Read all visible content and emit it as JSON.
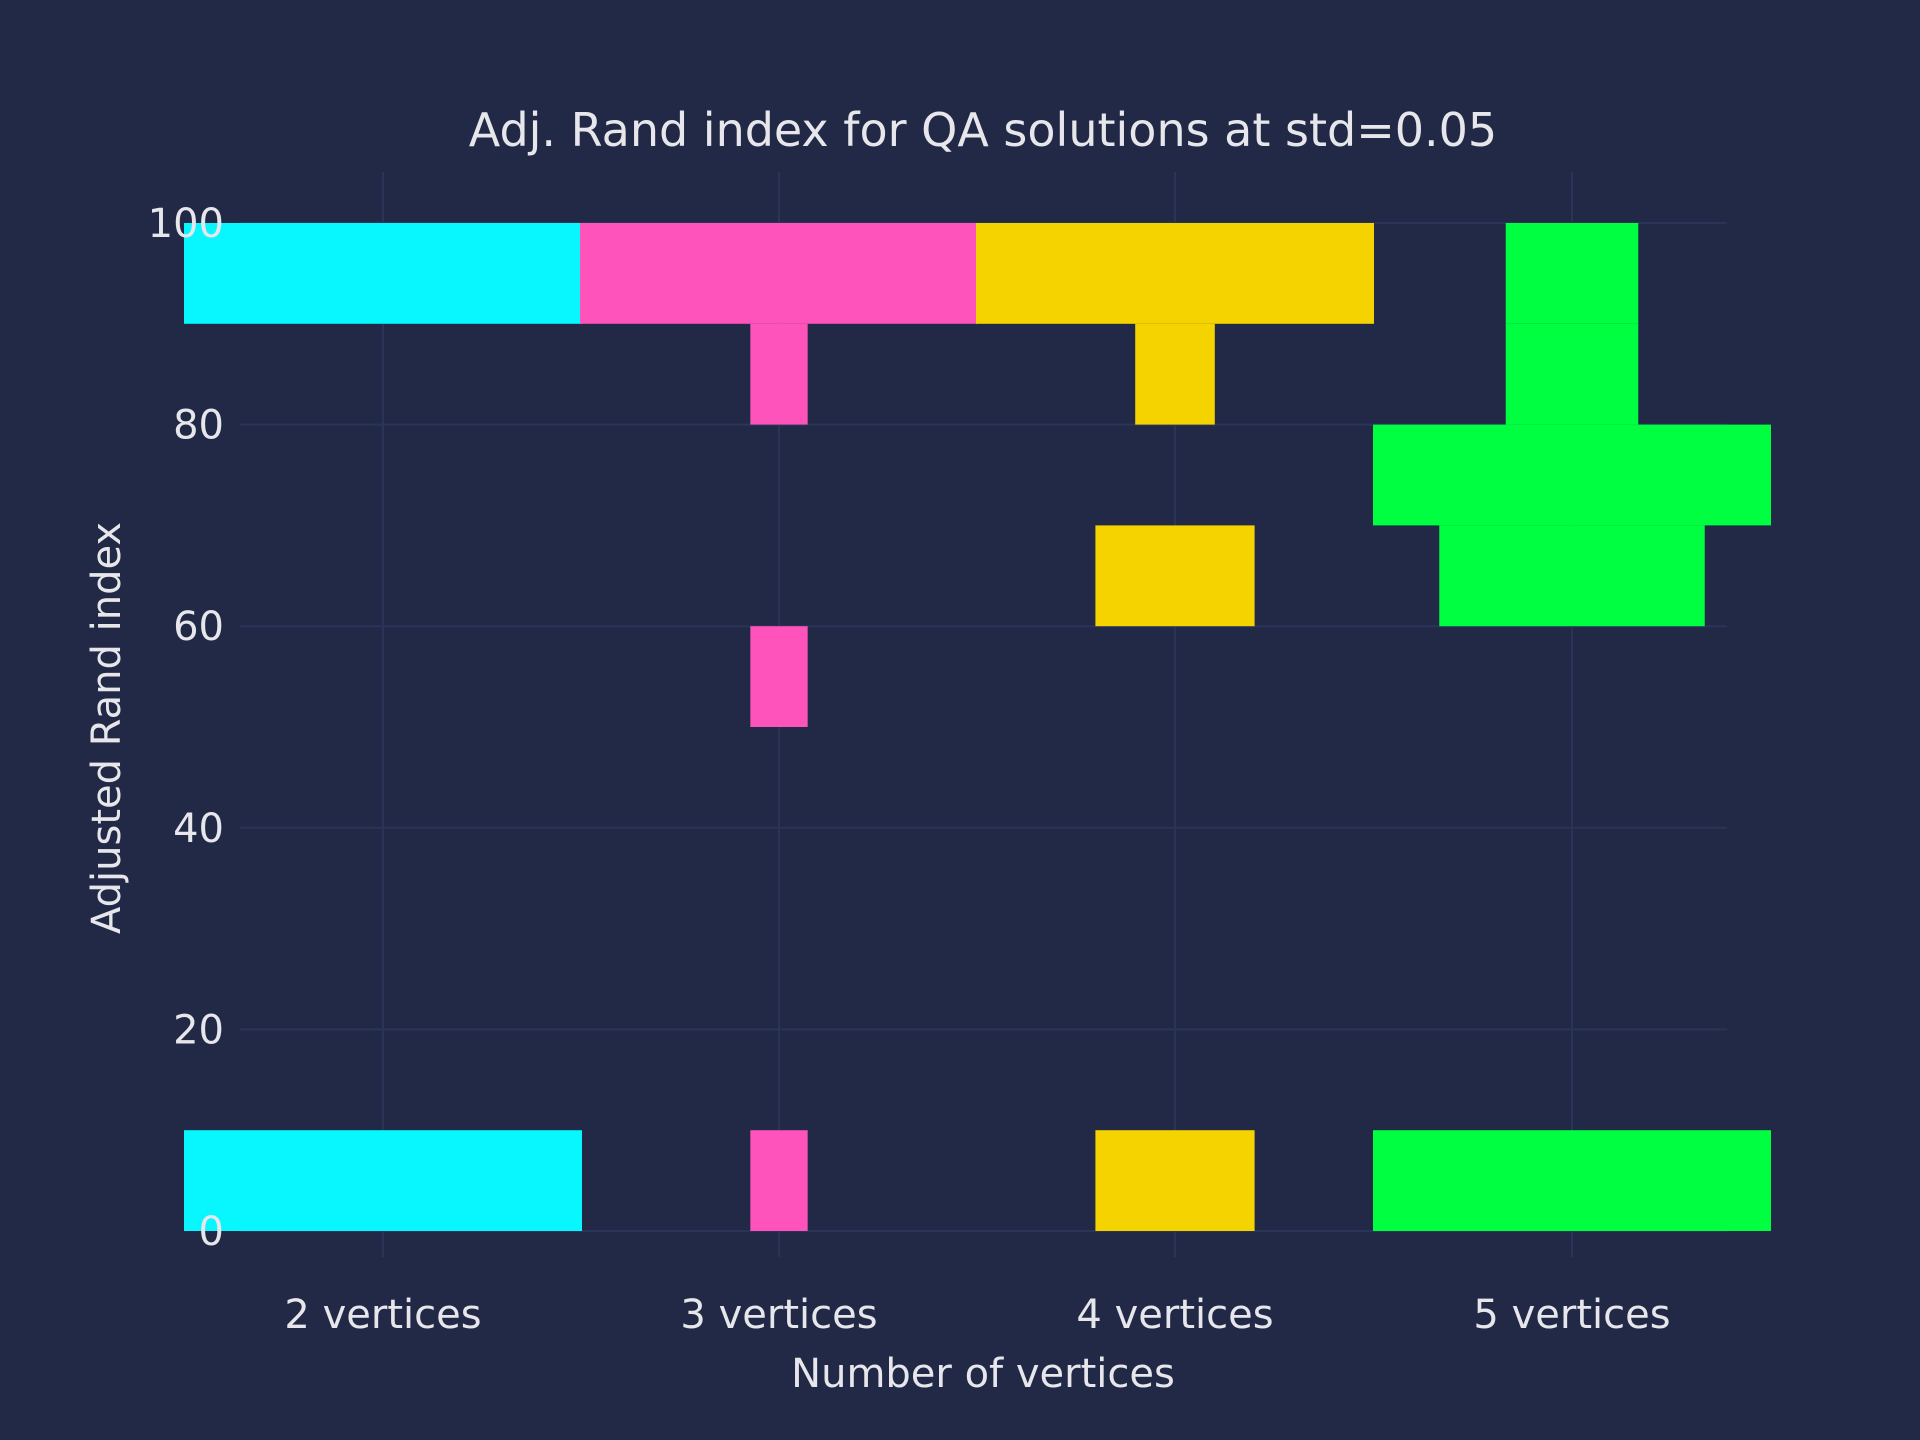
{
  "chart_data": {
    "type": "violin",
    "title": "Adj. Rand index for QA solutions at std=0.05",
    "xlabel": "Number of vertices",
    "ylabel": "Adjusted Rand index",
    "ylim": [
      0,
      100
    ],
    "yticks": [
      0,
      20,
      40,
      60,
      80,
      100
    ],
    "grid": true,
    "bin_width": 10,
    "categories": [
      "2 vertices",
      "3 vertices",
      "4 vertices",
      "5 vertices"
    ],
    "series": [
      {
        "category": "2 vertices",
        "color": "#08F7FE",
        "bins": [
          {
            "range": [
              0,
              10
            ],
            "relative_width": 1.0
          },
          {
            "range": [
              90,
              100
            ],
            "relative_width": 1.0
          }
        ]
      },
      {
        "category": "3 vertices",
        "color": "#FE53BB",
        "bins": [
          {
            "range": [
              0,
              10
            ],
            "relative_width": 0.144
          },
          {
            "range": [
              50,
              60
            ],
            "relative_width": 0.144
          },
          {
            "range": [
              80,
              90
            ],
            "relative_width": 0.144
          },
          {
            "range": [
              90,
              100
            ],
            "relative_width": 1.0
          }
        ]
      },
      {
        "category": "4 vertices",
        "color": "#F5D300",
        "bins": [
          {
            "range": [
              0,
              10
            ],
            "relative_width": 0.4
          },
          {
            "range": [
              60,
              70
            ],
            "relative_width": 0.4
          },
          {
            "range": [
              80,
              90
            ],
            "relative_width": 0.2
          },
          {
            "range": [
              90,
              100
            ],
            "relative_width": 1.0
          }
        ]
      },
      {
        "category": "5 vertices",
        "color": "#00FF41",
        "bins": [
          {
            "range": [
              0,
              10
            ],
            "relative_width": 1.0
          },
          {
            "range": [
              60,
              70
            ],
            "relative_width": 0.667
          },
          {
            "range": [
              70,
              80
            ],
            "relative_width": 1.0
          },
          {
            "range": [
              80,
              90
            ],
            "relative_width": 0.333
          },
          {
            "range": [
              90,
              100
            ],
            "relative_width": 0.333
          }
        ]
      }
    ]
  }
}
